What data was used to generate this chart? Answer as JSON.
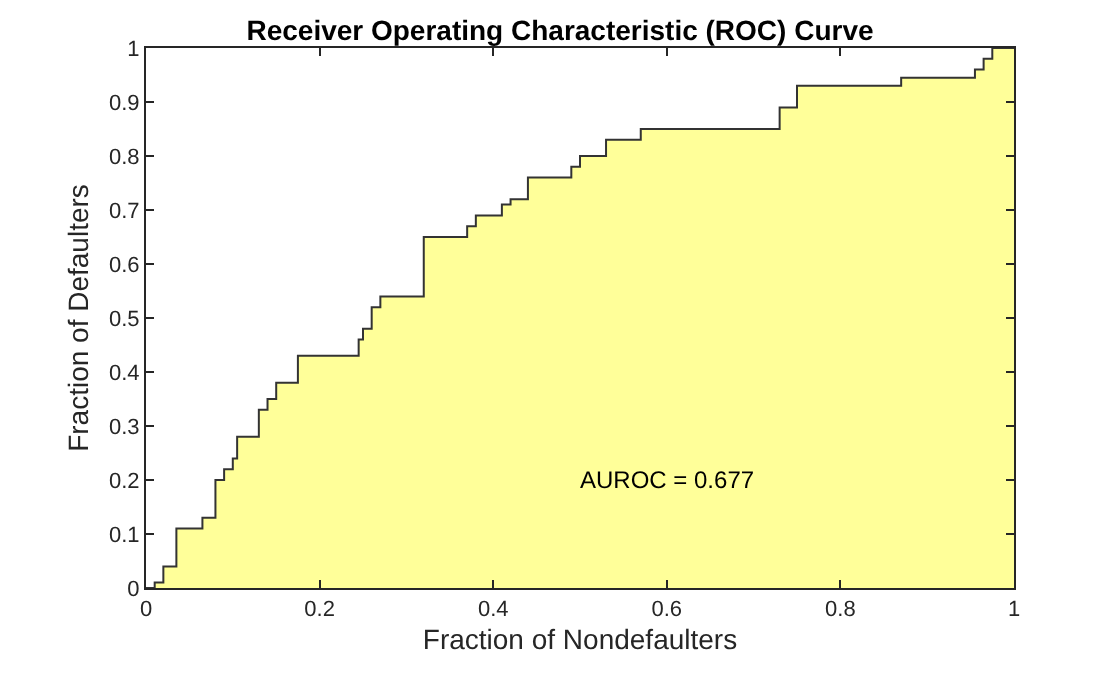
{
  "chart_data": {
    "type": "area",
    "title": "Receiver Operating Characteristic (ROC) Curve",
    "xlabel": "Fraction of Nondefaulters",
    "ylabel": "Fraction of Defaulters",
    "series": [
      {
        "color": "#ffff99",
        "x": [
          0,
          0.01,
          0.02,
          0.035,
          0.065,
          0.08,
          0.09,
          0.1,
          0.105,
          0.13,
          0.14,
          0.15,
          0.175,
          0.245,
          0.25,
          0.26,
          0.27,
          0.32,
          0.37,
          0.38,
          0.41,
          0.42,
          0.44,
          0.49,
          0.5,
          0.53,
          0.57,
          0.73,
          0.75,
          0.87,
          0.955,
          0.965,
          0.975,
          1
        ],
        "values": [
          0,
          0.01,
          0.04,
          0.11,
          0.13,
          0.2,
          0.22,
          0.24,
          0.28,
          0.33,
          0.35,
          0.38,
          0.43,
          0.46,
          0.48,
          0.52,
          0.54,
          0.65,
          0.67,
          0.69,
          0.71,
          0.72,
          0.76,
          0.78,
          0.8,
          0.83,
          0.85,
          0.89,
          0.93,
          0.945,
          0.96,
          0.98,
          1.0,
          1.0
        ]
      }
    ],
    "annotations": [
      "AUROC = 0.677"
    ],
    "xlim": [
      0,
      1
    ],
    "xticks": [
      0,
      0.2,
      0.4,
      0.6,
      0.8,
      1
    ],
    "ylim": [
      0,
      1
    ],
    "yticks": [
      0,
      0.1,
      0.2,
      0.3,
      0.4,
      0.5,
      0.6,
      0.7,
      0.8,
      0.9,
      1
    ]
  }
}
